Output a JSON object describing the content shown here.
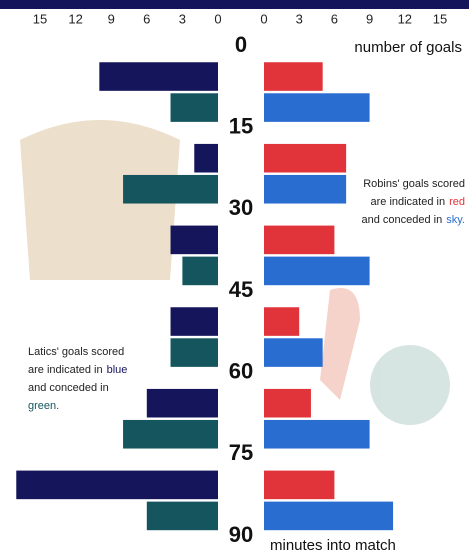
{
  "chart_data": {
    "type": "butterfly-bar",
    "ylim": [
      0,
      90
    ],
    "yticks": [
      0,
      15,
      30,
      45,
      60,
      75,
      90
    ],
    "x_label": "number of goals",
    "y_label": "minutes into match",
    "left": {
      "xlim": [
        0,
        15
      ],
      "xticks": [
        15,
        12,
        9,
        6,
        3,
        0
      ],
      "series": [
        {
          "color": "#15155c",
          "values": [
            10,
            2,
            4,
            4,
            6,
            17
          ]
        },
        {
          "color": "#15565e",
          "values": [
            4,
            8,
            3,
            4,
            8,
            6
          ]
        }
      ]
    },
    "right": {
      "xlim": [
        0,
        15
      ],
      "xticks": [
        0,
        3,
        6,
        9,
        12,
        15
      ],
      "series": [
        {
          "color": "#e0333a",
          "values": [
            5,
            7,
            6,
            3,
            4,
            6
          ]
        },
        {
          "color": "#2a6dd0",
          "values": [
            9,
            7,
            9,
            5,
            9,
            11
          ]
        }
      ]
    },
    "robins_note": [
      [
        "Robins' goals scored"
      ],
      [
        "are indicated in",
        "red"
      ],
      [
        "and conceded in",
        "sky."
      ]
    ],
    "latics_note": [
      [
        "Latics' goals scored"
      ],
      [
        "are indicated in",
        "blue"
      ],
      [
        "and conceded in"
      ],
      [
        "green."
      ]
    ]
  }
}
